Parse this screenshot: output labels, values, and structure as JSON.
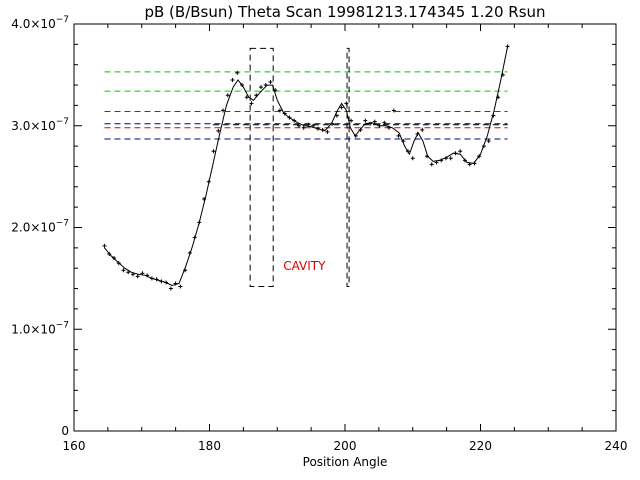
{
  "chart_data": {
    "type": "line",
    "title": "pB (B/Bsun) Theta Scan 19981213.174345 1.20 Rsun",
    "xlabel": "Position Angle",
    "ylabel": "",
    "xlim": [
      160,
      240
    ],
    "ylim": [
      0,
      4e-07
    ],
    "grid": false,
    "x_ticks": [
      {
        "value": 160,
        "label": "160"
      },
      {
        "value": 180,
        "label": "180"
      },
      {
        "value": 200,
        "label": "200"
      },
      {
        "value": 220,
        "label": "220"
      },
      {
        "value": 240,
        "label": "240"
      }
    ],
    "y_ticks": [
      {
        "value": 0,
        "mant": "0",
        "exp": ""
      },
      {
        "value": 1e-07,
        "mant": "1.0×10",
        "exp": "−7"
      },
      {
        "value": 2e-07,
        "mant": "2.0×10",
        "exp": "−7"
      },
      {
        "value": 3e-07,
        "mant": "3.0×10",
        "exp": "−7"
      },
      {
        "value": 4e-07,
        "mant": "4.0×10",
        "exp": "−7"
      }
    ],
    "series": [
      {
        "style": "points",
        "marker": "plus",
        "color": "#000000",
        "x": [
          164.5,
          165.2,
          165.9,
          166.6,
          167.3,
          168.0,
          168.7,
          169.4,
          170.1,
          170.8,
          171.5,
          172.2,
          172.9,
          173.6,
          174.3,
          175.0,
          175.7,
          176.4,
          177.1,
          177.8,
          178.5,
          179.2,
          179.9,
          180.6,
          181.3,
          182.0,
          182.7,
          183.4,
          184.1,
          184.8,
          185.5,
          186.2,
          186.9,
          187.6,
          188.3,
          189.0,
          189.7,
          190.4,
          191.1,
          191.8,
          192.5,
          193.2,
          193.9,
          194.6,
          195.3,
          196.0,
          196.7,
          197.4,
          198.1,
          198.8,
          199.5,
          200.2,
          200.9,
          201.6,
          202.3,
          203.0,
          203.7,
          204.4,
          205.1,
          205.8,
          206.5,
          207.2,
          207.9,
          208.6,
          209.3,
          210.0,
          210.7,
          211.4,
          212.1,
          212.8,
          213.5,
          214.2,
          214.9,
          215.6,
          216.3,
          217.0,
          217.7,
          218.4,
          219.1,
          219.8,
          220.5,
          221.2,
          221.9,
          222.6,
          223.3,
          224.0
        ],
        "y": [
          1.82e-07,
          1.74e-07,
          1.7e-07,
          1.65e-07,
          1.58e-07,
          1.56e-07,
          1.54e-07,
          1.52e-07,
          1.55e-07,
          1.53e-07,
          1.5e-07,
          1.49e-07,
          1.47e-07,
          1.46e-07,
          1.4e-07,
          1.45e-07,
          1.42e-07,
          1.58e-07,
          1.75e-07,
          1.9e-07,
          2.05e-07,
          2.28e-07,
          2.45e-07,
          2.75e-07,
          2.95e-07,
          3.15e-07,
          3.3e-07,
          3.45e-07,
          3.52e-07,
          3.4e-07,
          3.28e-07,
          3.22e-07,
          3.3e-07,
          3.38e-07,
          3.4e-07,
          3.43e-07,
          3.35e-07,
          3.15e-07,
          3.12e-07,
          3.08e-07,
          3.05e-07,
          3e-07,
          2.98e-07,
          3.01e-07,
          3e-07,
          2.97e-07,
          2.96e-07,
          2.94e-07,
          3.02e-07,
          3.1e-07,
          3.18e-07,
          3.22e-07,
          3.05e-07,
          2.9e-07,
          2.96e-07,
          3.05e-07,
          3.02e-07,
          3.04e-07,
          3e-07,
          3.03e-07,
          2.98e-07,
          3.15e-07,
          2.9e-07,
          2.85e-07,
          2.75e-07,
          2.68e-07,
          2.92e-07,
          2.96e-07,
          2.7e-07,
          2.62e-07,
          2.64e-07,
          2.66e-07,
          2.68e-07,
          2.68e-07,
          2.73e-07,
          2.75e-07,
          2.66e-07,
          2.62e-07,
          2.63e-07,
          2.7e-07,
          2.8e-07,
          2.85e-07,
          3.1e-07,
          3.28e-07,
          3.5e-07,
          3.78e-07
        ]
      },
      {
        "style": "line",
        "color": "#000000",
        "x": [
          164.5,
          165.5,
          166.5,
          167.5,
          168.5,
          169.5,
          170.5,
          171.5,
          172.5,
          173.5,
          174.5,
          175.5,
          176.5,
          177.5,
          178.5,
          179.5,
          180.5,
          181.5,
          182.5,
          183.5,
          184.2,
          185.0,
          185.8,
          186.5,
          187.5,
          188.5,
          189.3,
          190.0,
          191.0,
          192.0,
          193.0,
          194.0,
          195.0,
          196.0,
          197.0,
          198.0,
          198.8,
          199.5,
          200.2,
          200.8,
          201.5,
          202.2,
          203.0,
          204.0,
          205.0,
          206.0,
          207.0,
          208.0,
          208.8,
          209.5,
          210.2,
          210.8,
          211.5,
          212.2,
          213.0,
          214.0,
          215.0,
          216.0,
          217.0,
          218.0,
          219.0,
          220.0,
          221.0,
          222.0,
          223.0,
          224.0
        ],
        "y": [
          1.8e-07,
          1.72e-07,
          1.66e-07,
          1.6e-07,
          1.56e-07,
          1.54e-07,
          1.53e-07,
          1.5e-07,
          1.48e-07,
          1.46e-07,
          1.43e-07,
          1.45e-07,
          1.62e-07,
          1.82e-07,
          2.05e-07,
          2.32e-07,
          2.62e-07,
          2.92e-07,
          3.2e-07,
          3.38e-07,
          3.45e-07,
          3.38e-07,
          3.28e-07,
          3.25e-07,
          3.33e-07,
          3.4e-07,
          3.4e-07,
          3.25e-07,
          3.12e-07,
          3.07e-07,
          3.03e-07,
          3e-07,
          2.99e-07,
          2.97e-07,
          2.95e-07,
          3.02e-07,
          3.14e-07,
          3.22e-07,
          3.15e-07,
          2.98e-07,
          2.9e-07,
          2.96e-07,
          3.02e-07,
          3.03e-07,
          3e-07,
          3e-07,
          2.98e-07,
          2.93e-07,
          2.8e-07,
          2.72e-07,
          2.85e-07,
          2.93e-07,
          2.85e-07,
          2.7e-07,
          2.65e-07,
          2.66e-07,
          2.69e-07,
          2.73e-07,
          2.72e-07,
          2.64e-07,
          2.63e-07,
          2.72e-07,
          2.9e-07,
          3.15e-07,
          3.45e-07,
          3.78e-07
        ]
      }
    ],
    "hlines": [
      {
        "y": 3.53e-07,
        "color": "#00cc00"
      },
      {
        "y": 3.34e-07,
        "color": "#00cc00"
      },
      {
        "y": 3.14e-07,
        "color": "#dd0000"
      },
      {
        "y": 2.98e-07,
        "color": "#dd0000"
      },
      {
        "y": 3.02e-07,
        "color": "#000080"
      },
      {
        "y": 2.87e-07,
        "color": "#000080"
      },
      {
        "x0": 180.5,
        "y": 3.01e-07,
        "color": "#000000"
      }
    ],
    "hline_xrange": [
      164.5,
      224.0
    ],
    "boxes": [
      {
        "x0": 186.0,
        "x1": 189.4,
        "y0": 1.42e-07,
        "y1": 3.76e-07,
        "color": "#000000"
      },
      {
        "x0": 200.3,
        "x1": 200.6,
        "y0": 1.42e-07,
        "y1": 3.76e-07,
        "color": "#000000"
      }
    ],
    "annotations": [
      {
        "text": "CAVITY",
        "x": 194.0,
        "y": 1.58e-07,
        "color": "#dd0000"
      }
    ]
  }
}
